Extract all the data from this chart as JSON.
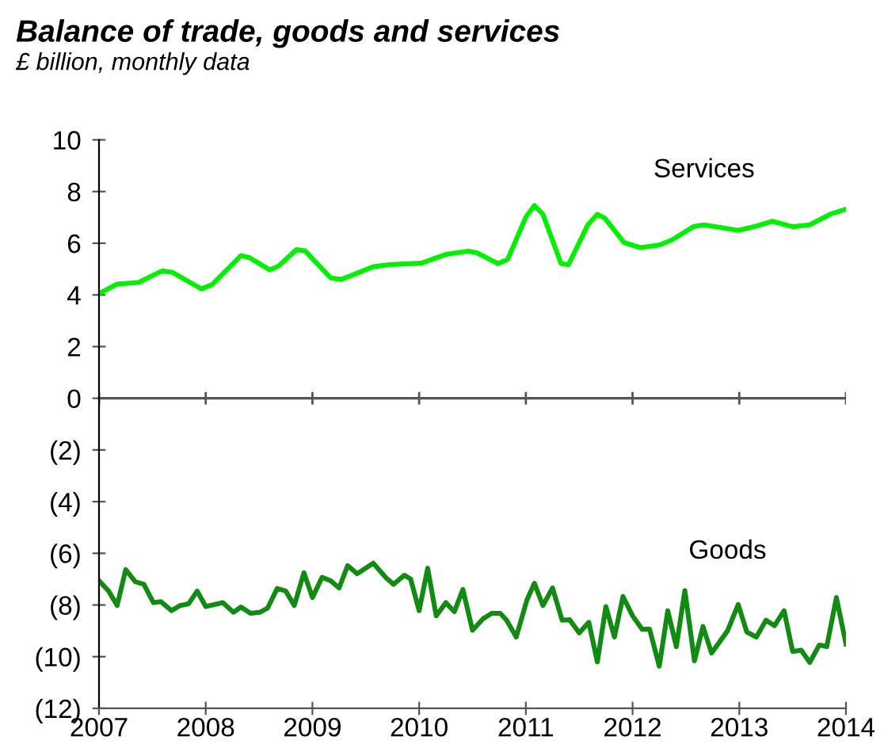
{
  "chart_data": {
    "type": "line",
    "title": "Balance of trade, goods and services",
    "subtitle": "£ billion, monthly data",
    "xlim": [
      2007,
      2014
    ],
    "xticks": [
      2007,
      2008,
      2009,
      2010,
      2011,
      2012,
      2013,
      2014
    ],
    "ylim": [
      -12,
      10
    ],
    "yticks": [
      {
        "value": -12,
        "label": "(12)"
      },
      {
        "value": -10,
        "label": "(10)"
      },
      {
        "value": -8,
        "label": "(8)"
      },
      {
        "value": -6,
        "label": "(6)"
      },
      {
        "value": -4,
        "label": "(4)"
      },
      {
        "value": -2,
        "label": "(2)"
      },
      0,
      2,
      4,
      6,
      8,
      10
    ],
    "grid": false,
    "legend": false,
    "marker": "none",
    "line_style": "solid",
    "ref_lines": [
      {
        "axis": "y",
        "value": 0,
        "label": null,
        "color": "#555555"
      }
    ],
    "series": [
      {
        "name": "Services",
        "color": "#00ee00",
        "x": [
          2007.0,
          2007.17,
          2007.37,
          2007.59,
          2007.69,
          2007.96,
          2008.06,
          2008.33,
          2008.41,
          2008.6,
          2008.68,
          2008.85,
          2008.93,
          2009.17,
          2009.27,
          2009.57,
          2009.72,
          2010.02,
          2010.26,
          2010.46,
          2010.54,
          2010.74,
          2010.83,
          2011.0,
          2011.08,
          2011.16,
          2011.33,
          2011.4,
          2011.58,
          2011.67,
          2011.74,
          2011.92,
          2012.07,
          2012.25,
          2012.37,
          2012.57,
          2012.67,
          2012.99,
          2013.14,
          2013.31,
          2013.5,
          2013.66,
          2013.85,
          2014.0
        ],
        "values": [
          4.05,
          4.42,
          4.48,
          4.93,
          4.87,
          4.23,
          4.4,
          5.52,
          5.44,
          4.97,
          5.11,
          5.75,
          5.71,
          4.66,
          4.6,
          5.09,
          5.17,
          5.23,
          5.58,
          5.69,
          5.63,
          5.21,
          5.38,
          7.01,
          7.46,
          7.12,
          5.21,
          5.17,
          6.71,
          7.12,
          6.97,
          6.03,
          5.83,
          5.93,
          6.13,
          6.64,
          6.71,
          6.5,
          6.64,
          6.85,
          6.64,
          6.71,
          7.12,
          7.32
        ]
      },
      {
        "name": "Goods",
        "color": "#138a13",
        "x": [
          2007.0,
          2007.09,
          2007.17,
          2007.25,
          2007.34,
          2007.42,
          2007.51,
          2007.58,
          2007.68,
          2007.76,
          2007.84,
          2007.92,
          2008.0,
          2008.16,
          2008.26,
          2008.33,
          2008.42,
          2008.51,
          2008.58,
          2008.67,
          2008.75,
          2008.83,
          2008.92,
          2009.0,
          2009.09,
          2009.17,
          2009.25,
          2009.33,
          2009.42,
          2009.57,
          2009.69,
          2009.76,
          2009.86,
          2009.92,
          2010.0,
          2010.08,
          2010.16,
          2010.25,
          2010.33,
          2010.41,
          2010.5,
          2010.6,
          2010.68,
          2010.76,
          2010.82,
          2010.91,
          2011.01,
          2011.08,
          2011.16,
          2011.25,
          2011.34,
          2011.41,
          2011.5,
          2011.59,
          2011.67,
          2011.75,
          2011.83,
          2011.91,
          2012.0,
          2012.09,
          2012.16,
          2012.25,
          2012.33,
          2012.41,
          2012.49,
          2012.58,
          2012.66,
          2012.74,
          2012.89,
          2012.99,
          2013.07,
          2013.16,
          2013.25,
          2013.33,
          2013.42,
          2013.5,
          2013.58,
          2013.66,
          2013.75,
          2013.82,
          2013.91,
          2014.0
        ],
        "values": [
          -7.06,
          -7.46,
          -8.02,
          -6.63,
          -7.1,
          -7.2,
          -7.91,
          -7.87,
          -8.22,
          -8.02,
          -7.95,
          -7.46,
          -8.06,
          -7.91,
          -8.28,
          -8.08,
          -8.32,
          -8.28,
          -8.12,
          -7.36,
          -7.46,
          -8.02,
          -6.75,
          -7.71,
          -6.93,
          -7.06,
          -7.34,
          -6.48,
          -6.79,
          -6.38,
          -6.95,
          -7.2,
          -6.85,
          -6.99,
          -8.22,
          -6.58,
          -8.42,
          -7.91,
          -8.26,
          -7.4,
          -8.98,
          -8.53,
          -8.32,
          -8.32,
          -8.59,
          -9.24,
          -7.81,
          -7.16,
          -8.02,
          -7.34,
          -8.59,
          -8.57,
          -9.08,
          -8.67,
          -10.2,
          -8.06,
          -9.24,
          -7.67,
          -8.42,
          -8.94,
          -8.94,
          -10.37,
          -8.22,
          -9.61,
          -7.44,
          -10.16,
          -8.83,
          -9.86,
          -9.0,
          -7.98,
          -9.04,
          -9.24,
          -8.59,
          -8.8,
          -8.22,
          -9.8,
          -9.75,
          -10.22,
          -9.55,
          -9.61,
          -7.71,
          -9.51
        ]
      }
    ]
  }
}
